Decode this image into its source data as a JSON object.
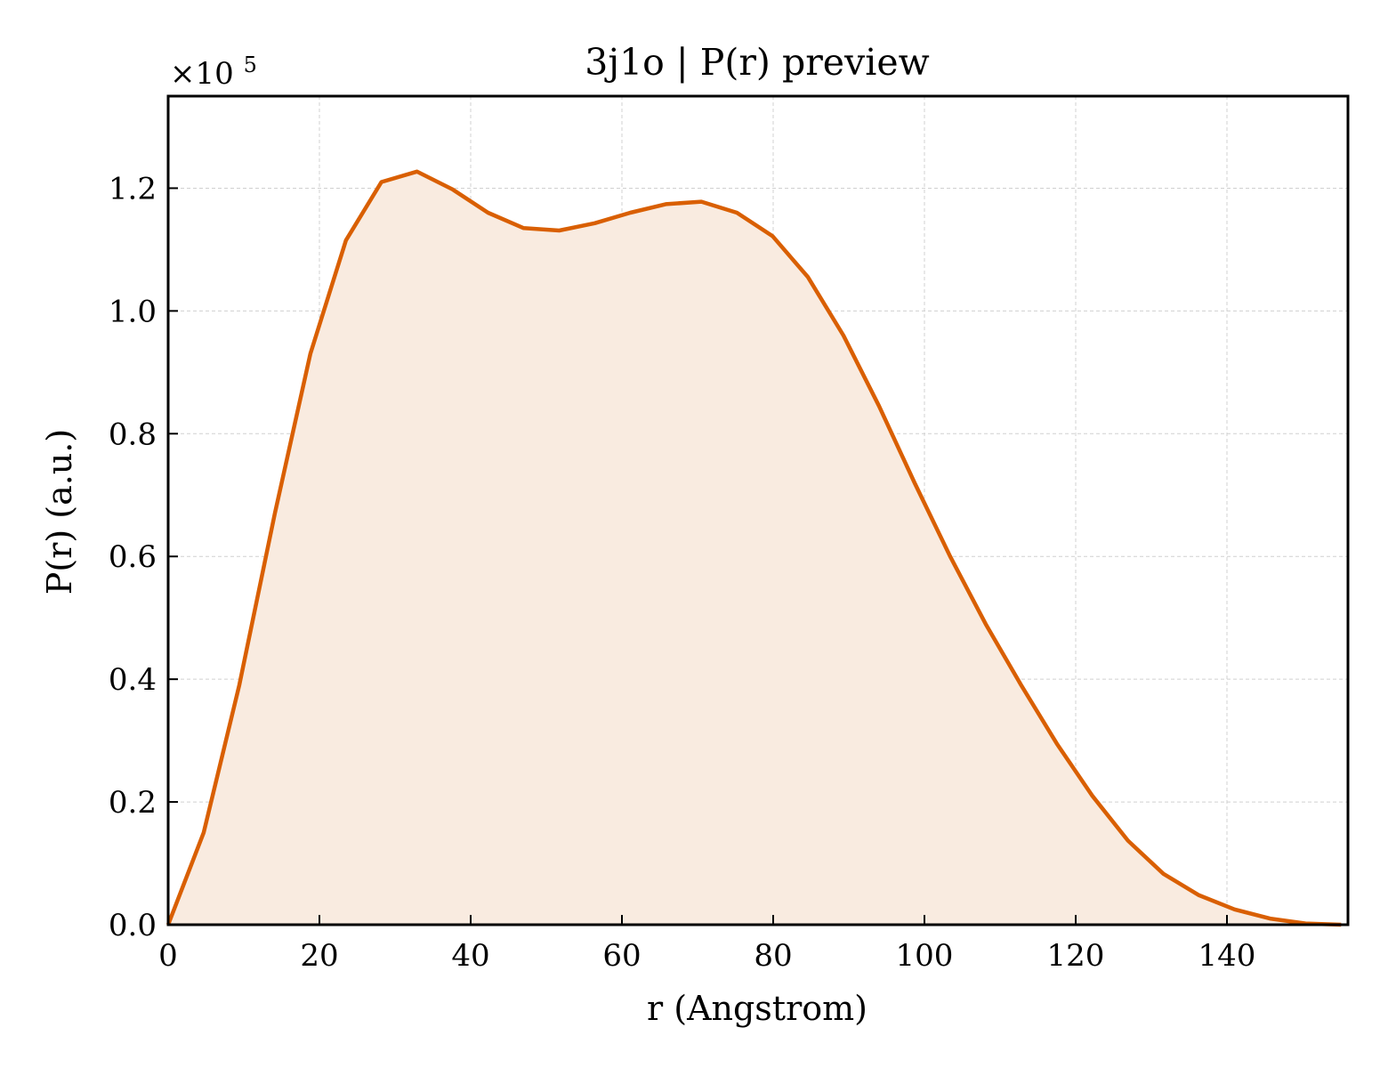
{
  "chart_data": {
    "type": "area",
    "title": "3j1o | P(r) preview",
    "xlabel": "r (Angstrom)",
    "ylabel": "P(r) (a.u.)",
    "y_exponent_base": "×10",
    "y_exponent_power": "5",
    "xlim": [
      0,
      156
    ],
    "ylim": [
      0,
      1.35
    ],
    "x_ticks": [
      0,
      20,
      40,
      60,
      80,
      100,
      120,
      140
    ],
    "x_tick_labels": [
      "0",
      "20",
      "40",
      "60",
      "80",
      "100",
      "120",
      "140"
    ],
    "y_ticks": [
      0,
      0.2,
      0.4,
      0.6,
      0.8,
      1.0,
      1.2
    ],
    "y_tick_labels": [
      "0.0",
      "0.2",
      "0.4",
      "0.6",
      "0.8",
      "1.0",
      "1.2"
    ],
    "grid": true,
    "color": "#d95f02",
    "fill_color": "#f9ebe0",
    "series": [
      {
        "x": [
          0,
          4.7,
          9.4,
          14.1,
          18.8,
          23.5,
          28.2,
          32.9,
          37.6,
          42.3,
          47.0,
          51.7,
          56.4,
          61.1,
          65.8,
          70.5,
          75.2,
          79.9,
          84.6,
          89.3,
          94.0,
          98.7,
          103.4,
          108.1,
          112.8,
          117.5,
          122.2,
          126.9,
          131.6,
          136.3,
          141.0,
          145.7,
          150.4,
          155.1
        ],
        "values": [
          0,
          0.15,
          0.39,
          0.67,
          0.93,
          1.115,
          1.21,
          1.227,
          1.198,
          1.16,
          1.135,
          1.131,
          1.143,
          1.16,
          1.174,
          1.178,
          1.16,
          1.122,
          1.055,
          0.96,
          0.845,
          0.72,
          0.6,
          0.49,
          0.39,
          0.295,
          0.21,
          0.137,
          0.083,
          0.048,
          0.025,
          0.01,
          0.002,
          0.0
        ]
      }
    ]
  }
}
